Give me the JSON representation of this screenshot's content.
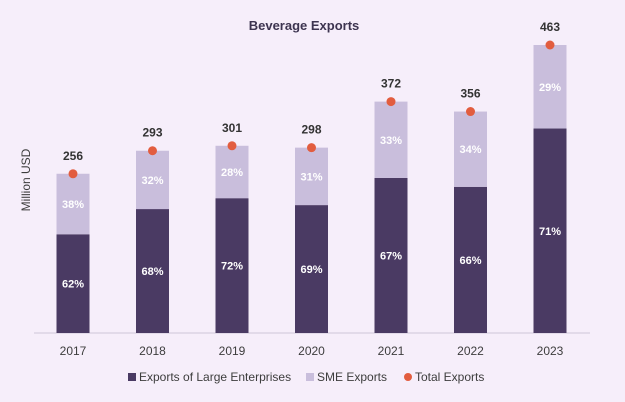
{
  "chart_data": {
    "type": "bar",
    "stacked": true,
    "title": "Beverage Exports",
    "xlabel": "",
    "ylabel": "Million USD",
    "categories": [
      "2017",
      "2018",
      "2019",
      "2020",
      "2021",
      "2022",
      "2023"
    ],
    "totals": [
      256,
      293,
      301,
      298,
      372,
      356,
      463
    ],
    "series": [
      {
        "name": "Exports of Large Enterprises",
        "color": "#4a3a63",
        "percent_labels": [
          "62%",
          "68%",
          "72%",
          "69%",
          "67%",
          "66%",
          "71%"
        ],
        "shares": [
          62,
          68,
          72,
          69,
          67,
          66,
          71
        ]
      },
      {
        "name": "SME Exports",
        "color": "#c9bedc",
        "percent_labels": [
          "38%",
          "32%",
          "28%",
          "31%",
          "33%",
          "34%",
          "29%"
        ],
        "shares": [
          38,
          32,
          28,
          31,
          33,
          34,
          29
        ]
      }
    ],
    "total_series": {
      "name": "Total Exports",
      "color": "#e25d3f"
    },
    "ylim": [
      0,
      463
    ],
    "grid": false,
    "legend_position": "bottom-center"
  }
}
